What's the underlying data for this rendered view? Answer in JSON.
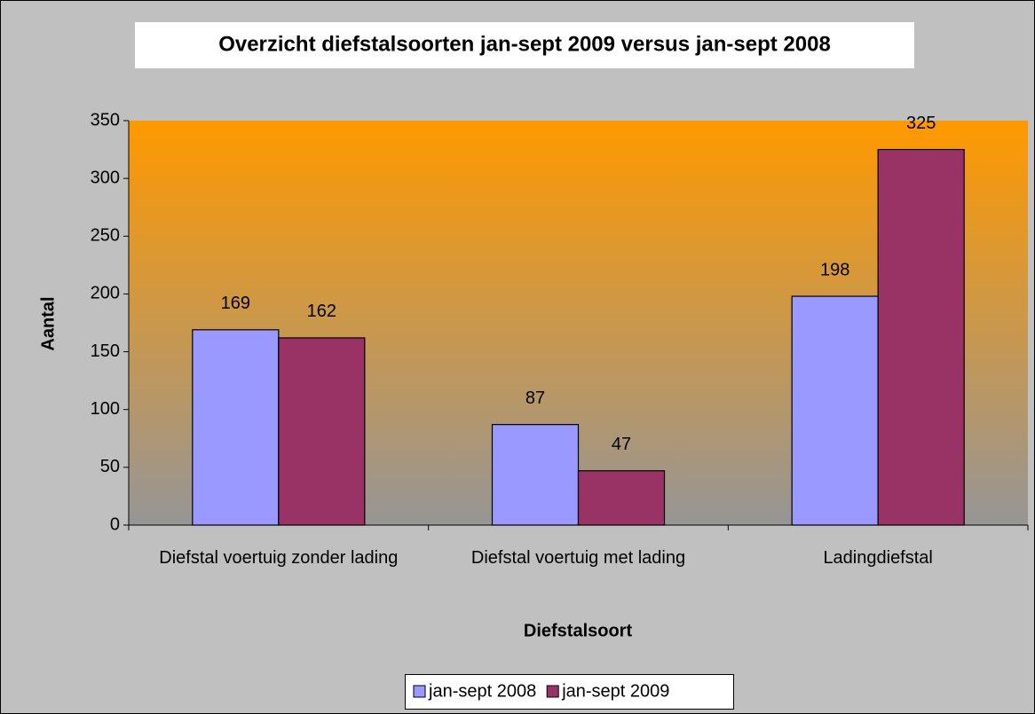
{
  "chart_data": {
    "type": "bar",
    "title": "Overzicht diefstalsoorten jan-sept 2009 versus jan-sept 2008",
    "x_label": "Diefstalsoort",
    "y_label": "Aantal",
    "categories": [
      "Diefstal voertuig zonder lading",
      "Diefstal voertuig met lading",
      "Ladingdiefstal"
    ],
    "series": [
      {
        "name": "jan-sept 2008",
        "color": "#9999ff",
        "values": [
          169,
          87,
          198
        ]
      },
      {
        "name": "jan-sept 2009",
        "color": "#993366",
        "values": [
          162,
          47,
          325
        ]
      }
    ],
    "ylim": [
      0,
      350
    ],
    "yticks": [
      0,
      50,
      100,
      150,
      200,
      250,
      300,
      350
    ],
    "legend": "bottom"
  }
}
